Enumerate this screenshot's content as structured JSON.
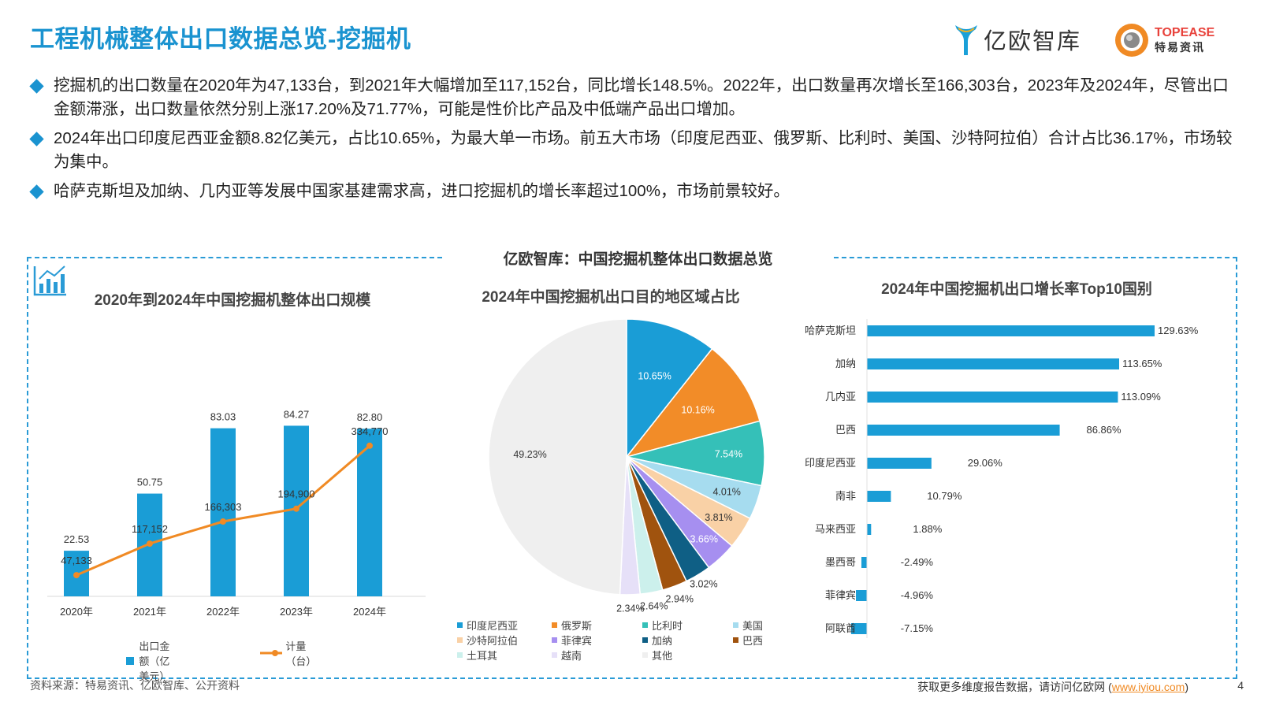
{
  "header": {
    "title": "工程机械整体出口数据总览-挖掘机",
    "logo1_text": "亿欧智库",
    "logo2_line1": "TOPEASE",
    "logo2_line2": "特易资讯"
  },
  "bullets": [
    "挖掘机的出口数量在2020年为47,133台，到2021年大幅增加至117,152台，同比增长148.5%。2022年，出口数量再次增长至166,303台，2023年及2024年，尽管出口金额滞涨，出口数量依然分别上涨17.20%及71.77%，可能是性价比产品及中低端产品出口增加。",
    "2024年出口印度尼西亚金额8.82亿美元，占比10.65%，为最大单一市场。前五大市场（印度尼西亚、俄罗斯、比利时、美国、沙特阿拉伯）合计占比36.17%，市场较为集中。",
    "哈萨克斯坦及加纳、几内亚等发展中国家基建需求高，进口挖掘机的增长率超过100%，市场前景较好。"
  ],
  "panel_title": "亿欧智库：中国挖掘机整体出口数据总览",
  "colors": {
    "accent": "#1a93d0",
    "bar": "#1a9dd6",
    "line": "#f08a24"
  },
  "chart_data": [
    {
      "type": "bar",
      "title": "2020年到2024年中国挖掘机整体出口规模",
      "categories": [
        "2020年",
        "2021年",
        "2022年",
        "2023年",
        "2024年"
      ],
      "series": [
        {
          "name": "出口金额（亿美元）",
          "type": "bar",
          "values": [
            22.53,
            50.75,
            83.03,
            84.27,
            82.8
          ],
          "labels": [
            "22.53",
            "50.75",
            "83.03",
            "84.27",
            "82.80"
          ]
        },
        {
          "name": "计量（台）",
          "type": "line",
          "values": [
            47133,
            117152,
            166303,
            194900,
            334770
          ],
          "labels": [
            "47,133",
            "117,152",
            "166,303",
            "194,900",
            "334,770"
          ]
        }
      ],
      "ylim": [
        0,
        100
      ],
      "y2lim": [
        0,
        450000
      ],
      "legend": "bottom"
    },
    {
      "type": "pie",
      "title": "2024年中国挖掘机出口目的地区域占比",
      "categories": [
        "印度尼西亚",
        "俄罗斯",
        "比利时",
        "美国",
        "沙特阿拉伯",
        "菲律宾",
        "加纳",
        "巴西",
        "土耳其",
        "越南",
        "其他"
      ],
      "values": [
        10.65,
        10.16,
        7.54,
        4.01,
        3.81,
        3.66,
        3.02,
        2.94,
        2.64,
        2.34,
        49.23
      ],
      "labels": [
        "10.65%",
        "10.16%",
        "7.54%",
        "4.01%",
        "3.81%",
        "3.66%",
        "3.02%",
        "2.94%",
        "2.64%",
        "2.34%",
        "49.23%"
      ],
      "colors": [
        "#1a9dd6",
        "#f28c28",
        "#35c0b8",
        "#a6dcef",
        "#f9d1a6",
        "#a68ff0",
        "#0f5f85",
        "#a0530e",
        "#ccf0ec",
        "#e6e0f8",
        "#efefef"
      ],
      "legend": "bottom"
    },
    {
      "type": "bar",
      "orientation": "horizontal",
      "title": "2024年中国挖掘机出口增长率Top10国别",
      "categories": [
        "哈萨克斯坦",
        "加纳",
        "几内亚",
        "巴西",
        "印度尼西亚",
        "南非",
        "马来西亚",
        "墨西哥",
        "菲律宾",
        "阿联酋"
      ],
      "values": [
        129.63,
        113.65,
        113.09,
        86.86,
        29.06,
        10.79,
        1.88,
        -2.49,
        -4.96,
        -7.15
      ],
      "labels": [
        "129.63%",
        "113.65%",
        "113.09%",
        "86.86%",
        "29.06%",
        "10.79%",
        "1.88%",
        "-2.49%",
        "-4.96%",
        "-7.15%"
      ]
    }
  ],
  "footer": {
    "source": "资料来源：特易资讯、亿欧智库、公开资料",
    "more_text": "获取更多维度报告数据，请访问亿欧网 (",
    "link": "www.iyiou.com",
    "close_paren": ")",
    "page": "4"
  }
}
